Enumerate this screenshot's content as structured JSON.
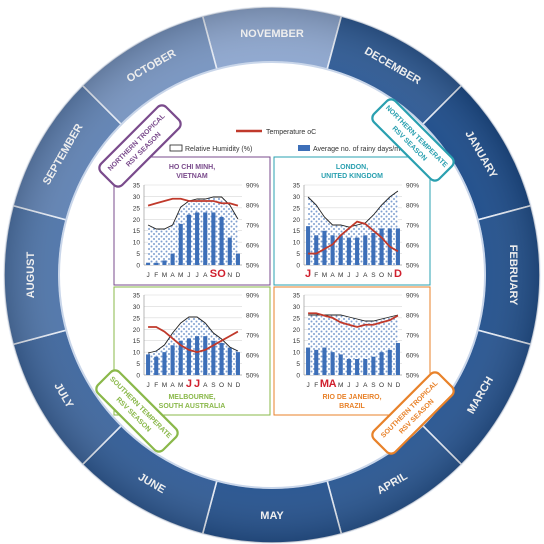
{
  "months": [
    "NOVEMBER",
    "DECEMBER",
    "JANUARY",
    "FEBRUARY",
    "MARCH",
    "APRIL",
    "MAY",
    "JUNE",
    "JULY",
    "AUGUST",
    "SEPTEMBER",
    "OCTOBER"
  ],
  "seasons": [
    {
      "text": "NORTHERN TROPICAL RSV SEASON",
      "lines": [
        "NORTHERN TROPICAL",
        "RSV SEASON"
      ],
      "color": "#7a4b8c"
    },
    {
      "text": "NORTHERN TEMPERATE RSV SEASON",
      "lines": [
        "NORTHERN TEMPERATE",
        "RSV SEASON"
      ],
      "color": "#2aa0b0"
    },
    {
      "text": "SOUTHERN TROPICAL RSV SEASON",
      "lines": [
        "SOUTHERN TROPICAL",
        "RSV SEASON"
      ],
      "color": "#e8822a"
    },
    {
      "text": "SOUTHERN TEMPERATE RSV SEASON",
      "lines": [
        "SOUTHERN TEMPERATE",
        "RSV SEASON"
      ],
      "color": "#8ab84a"
    }
  ],
  "legend": {
    "temperature": "Temperature oC",
    "humidity": "Relative Humidity (%)",
    "rainy_days": "Average no. of rainy days/month"
  },
  "colors": {
    "ring_light": "#8fa8d0",
    "ring_dark": "#1f4e8c",
    "bar": "#3d6fb8",
    "temp_line": "#c0392b",
    "humidity_line": "#222222",
    "peak_label": "#d0202e"
  },
  "chart_data": [
    {
      "type": "bar",
      "title": "HO CHI MINH, VIETNAM",
      "title_lines": [
        "HO CHI MINH,",
        "VIETNAM"
      ],
      "title_color": "#7a4b8c",
      "categories": [
        "J",
        "F",
        "M",
        "A",
        "M",
        "J",
        "J",
        "A",
        "S",
        "O",
        "N",
        "D"
      ],
      "peak_letters": [
        "S",
        "O"
      ],
      "left_ticks": [
        "0",
        "5",
        "10",
        "15",
        "20",
        "25",
        "30",
        "35"
      ],
      "right_ticks": [
        "50%",
        "60%",
        "70%",
        "80%",
        "90%"
      ],
      "ylim": [
        0,
        35
      ],
      "y2lim": [
        50,
        90
      ],
      "series": [
        {
          "name": "Average no. of rainy days/month",
          "kind": "bar",
          "values": [
            1,
            1,
            2,
            5,
            18,
            22,
            23,
            23,
            23,
            21,
            12,
            5
          ]
        },
        {
          "name": "Temperature oC",
          "kind": "line",
          "values": [
            26,
            27,
            28,
            29,
            29,
            28,
            28,
            28,
            28,
            27,
            27,
            26
          ]
        },
        {
          "name": "Relative Humidity (%)",
          "kind": "area",
          "values": [
            70,
            68,
            68,
            70,
            79,
            82,
            83,
            83,
            84,
            84,
            80,
            73
          ]
        }
      ]
    },
    {
      "type": "bar",
      "title": "LONDON, UNITED KINGDOM",
      "title_lines": [
        "LONDON,",
        "UNITED KINGDOM"
      ],
      "title_color": "#2aa0b0",
      "categories": [
        "J",
        "F",
        "M",
        "A",
        "M",
        "J",
        "J",
        "A",
        "S",
        "O",
        "N",
        "D"
      ],
      "peak_letters": [
        "J",
        "D"
      ],
      "left_ticks": [
        "0",
        "5",
        "10",
        "15",
        "20",
        "25",
        "30",
        "35"
      ],
      "right_ticks": [
        "50%",
        "60%",
        "70%",
        "80%",
        "90%"
      ],
      "ylim": [
        0,
        35
      ],
      "y2lim": [
        50,
        90
      ],
      "series": [
        {
          "name": "Average no. of rainy days/month",
          "kind": "bar",
          "values": [
            17,
            13,
            15,
            13,
            13,
            12,
            12,
            13,
            14,
            16,
            16,
            16
          ]
        },
        {
          "name": "Temperature oC",
          "kind": "line",
          "values": [
            5,
            5,
            7,
            9,
            13,
            16,
            19,
            18,
            15,
            12,
            8,
            6
          ]
        },
        {
          "name": "Relative Humidity (%)",
          "kind": "area",
          "values": [
            84,
            80,
            74,
            70,
            70,
            69,
            70,
            71,
            75,
            80,
            84,
            87
          ]
        }
      ]
    },
    {
      "type": "bar",
      "title": "MELBOURNE, SOUTH AUSTRALIA",
      "title_lines": [
        "MELBOURNE,",
        "SOUTH AUSTRALIA"
      ],
      "title_color": "#8ab84a",
      "categories": [
        "J",
        "F",
        "M",
        "A",
        "M",
        "J",
        "J",
        "A",
        "S",
        "O",
        "N",
        "D"
      ],
      "peak_letters": [
        "J",
        "J"
      ],
      "left_ticks": [
        "0",
        "5",
        "10",
        "15",
        "20",
        "25",
        "30",
        "35"
      ],
      "right_ticks": [
        "50%",
        "60%",
        "70%",
        "80%",
        "90%"
      ],
      "ylim": [
        0,
        35
      ],
      "y2lim": [
        50,
        90
      ],
      "series": [
        {
          "name": "Average no. of rainy days/month",
          "kind": "bar",
          "values": [
            9,
            8,
            10,
            13,
            15,
            16,
            17,
            17,
            15,
            14,
            12,
            10
          ]
        },
        {
          "name": "Temperature oC",
          "kind": "line",
          "values": [
            21,
            21,
            19,
            16,
            13,
            11,
            10,
            11,
            13,
            15,
            17,
            19
          ]
        },
        {
          "name": "Relative Humidity (%)",
          "kind": "area",
          "values": [
            61,
            62,
            65,
            71,
            76,
            79,
            79,
            76,
            71,
            68,
            64,
            62
          ]
        }
      ]
    },
    {
      "type": "bar",
      "title": "RIO DE JANEIRO, BRAZIL",
      "title_lines": [
        "RIO DE JANEIRO,",
        "BRAZIL"
      ],
      "title_color": "#e8822a",
      "categories": [
        "J",
        "F",
        "M",
        "A",
        "M",
        "J",
        "J",
        "A",
        "S",
        "O",
        "N",
        "D"
      ],
      "peak_letters": [
        "M",
        "A"
      ],
      "left_ticks": [
        "0",
        "5",
        "10",
        "15",
        "20",
        "25",
        "30",
        "35"
      ],
      "right_ticks": [
        "50%",
        "60%",
        "70%",
        "80%",
        "90%"
      ],
      "ylim": [
        0,
        35
      ],
      "y2lim": [
        50,
        90
      ],
      "series": [
        {
          "name": "Average no. of rainy days/month",
          "kind": "bar",
          "values": [
            12,
            11,
            12,
            10,
            9,
            7,
            7,
            7,
            8,
            10,
            11,
            14
          ]
        },
        {
          "name": "Temperature oC",
          "kind": "line",
          "values": [
            27,
            27,
            26,
            25,
            23,
            22,
            21,
            22,
            22,
            23,
            24,
            26
          ]
        },
        {
          "name": "Relative Humidity (%)",
          "kind": "area",
          "values": [
            80,
            80,
            80,
            80,
            80,
            79,
            78,
            77,
            77,
            78,
            79,
            80
          ]
        }
      ]
    }
  ]
}
